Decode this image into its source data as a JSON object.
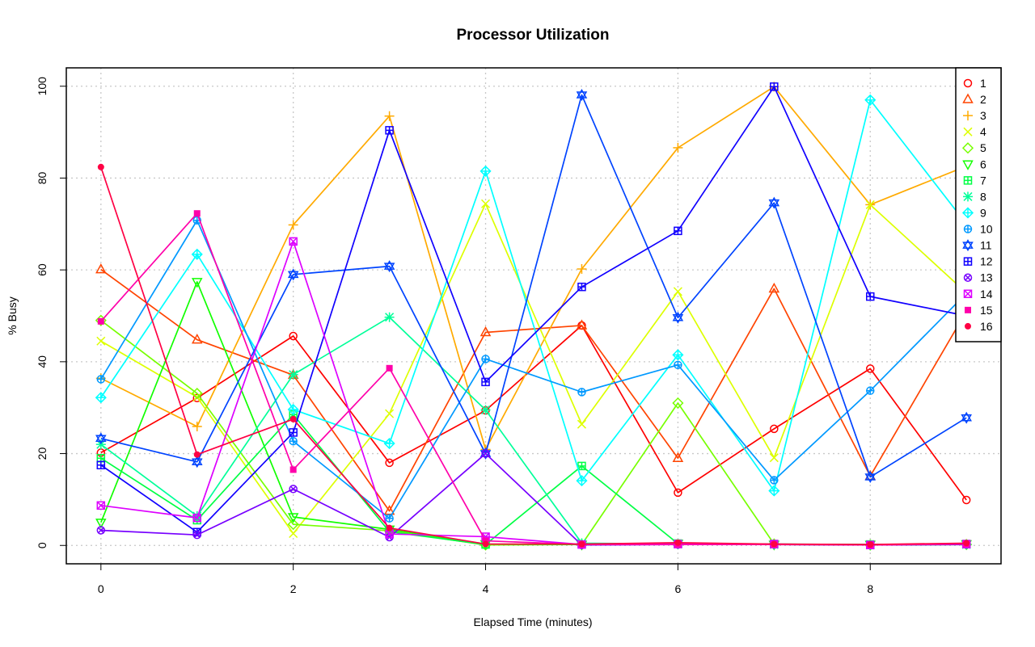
{
  "chart_data": {
    "type": "line",
    "title": "Processor Utilization",
    "xlabel": "Elapsed Time (minutes)",
    "ylabel": "% Busy",
    "xlim": [
      -0.36,
      9.36
    ],
    "ylim": [
      -4,
      104
    ],
    "x_ticks": [
      0,
      2,
      4,
      6,
      8
    ],
    "y_ticks": [
      0,
      20,
      40,
      60,
      80,
      100
    ],
    "grid": true,
    "legend_position": "top-right",
    "x": [
      0,
      1,
      2,
      3,
      4,
      5,
      6,
      7,
      8,
      9
    ],
    "series": [
      {
        "name": "1",
        "color": "#FF0000",
        "marker": "circle",
        "values": [
          20.2,
          32.1,
          45.6,
          18.0,
          29.4,
          47.9,
          11.5,
          25.4,
          38.5,
          9.9
        ]
      },
      {
        "name": "2",
        "color": "#FF4400",
        "marker": "triangle-up",
        "values": [
          60.1,
          44.8,
          37.1,
          7.5,
          46.4,
          47.9,
          19.0,
          55.9,
          15.1,
          51.0
        ]
      },
      {
        "name": "3",
        "color": "#FFAA00",
        "marker": "plus",
        "values": [
          36.4,
          25.9,
          69.8,
          93.5,
          20.9,
          60.2,
          86.6,
          99.9,
          74.2,
          82.6
        ]
      },
      {
        "name": "4",
        "color": "#DDFF00",
        "marker": "cross",
        "values": [
          44.5,
          32.3,
          2.6,
          28.7,
          74.4,
          26.4,
          55.3,
          19.1,
          74.2,
          55.0
        ]
      },
      {
        "name": "5",
        "color": "#77FF00",
        "marker": "diamond",
        "values": [
          49.0,
          33.1,
          4.6,
          3.2,
          0.1,
          0.2,
          31.0,
          0.3,
          0.1,
          0.2
        ]
      },
      {
        "name": "6",
        "color": "#11FF00",
        "marker": "triangle-down",
        "values": [
          5.0,
          57.4,
          6.2,
          3.5,
          0.3,
          0.2,
          0.4,
          0.2,
          0.2,
          0.3
        ]
      },
      {
        "name": "7",
        "color": "#00FF44",
        "marker": "square-plus",
        "values": [
          19.0,
          5.5,
          28.5,
          3.0,
          0.2,
          17.3,
          0.4,
          0.3,
          0.2,
          0.3
        ]
      },
      {
        "name": "8",
        "color": "#00FF99",
        "marker": "asterisk",
        "values": [
          22.0,
          6.4,
          37.2,
          49.7,
          29.5,
          0.5,
          0.3,
          0.2,
          0.1,
          0.2
        ]
      },
      {
        "name": "9",
        "color": "#00FFFF",
        "marker": "diamond-plus",
        "values": [
          32.2,
          63.4,
          29.6,
          22.2,
          81.5,
          14.1,
          41.5,
          11.9,
          97.0,
          70.0
        ]
      },
      {
        "name": "10",
        "color": "#0099FF",
        "marker": "circle-plus",
        "values": [
          36.2,
          70.8,
          22.7,
          5.9,
          40.6,
          33.4,
          39.3,
          14.2,
          33.7,
          54.9
        ]
      },
      {
        "name": "11",
        "color": "#0044FF",
        "marker": "star-david",
        "values": [
          23.3,
          18.2,
          59.0,
          60.8,
          20.0,
          98.1,
          49.6,
          74.6,
          14.9,
          27.8
        ]
      },
      {
        "name": "12",
        "color": "#1100FF",
        "marker": "square-grid",
        "values": [
          17.5,
          2.9,
          24.6,
          90.4,
          35.6,
          56.3,
          68.5,
          99.9,
          54.2,
          50.0
        ]
      },
      {
        "name": "13",
        "color": "#7700FF",
        "marker": "circle-x",
        "values": [
          3.3,
          2.3,
          12.3,
          1.8,
          20.0,
          0.1,
          0.2,
          0.2,
          0.1,
          0.2
        ]
      },
      {
        "name": "14",
        "color": "#DD00FF",
        "marker": "square-x",
        "values": [
          8.7,
          6.0,
          66.2,
          2.5,
          1.9,
          0.2,
          0.3,
          0.3,
          0.1,
          0.3
        ]
      },
      {
        "name": "15",
        "color": "#FF00AA",
        "marker": "square-filled",
        "values": [
          48.8,
          72.3,
          16.5,
          38.6,
          1.0,
          0.2,
          0.2,
          0.2,
          0.1,
          0.3
        ]
      },
      {
        "name": "16",
        "color": "#FF0044",
        "marker": "circle-filled",
        "values": [
          82.4,
          19.8,
          27.5,
          3.8,
          0.3,
          0.3,
          0.6,
          0.3,
          0.2,
          0.5
        ]
      }
    ]
  }
}
